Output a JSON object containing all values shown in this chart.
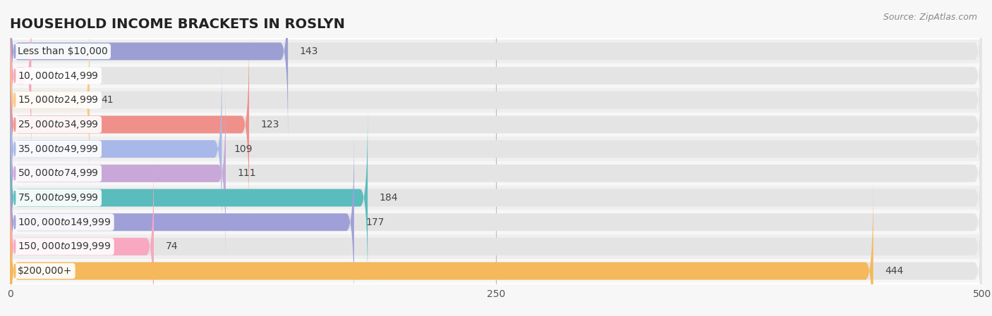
{
  "title": "HOUSEHOLD INCOME BRACKETS IN ROSLYN",
  "source": "Source: ZipAtlas.com",
  "categories": [
    "Less than $10,000",
    "$10,000 to $14,999",
    "$15,000 to $24,999",
    "$25,000 to $34,999",
    "$35,000 to $49,999",
    "$50,000 to $74,999",
    "$75,000 to $99,999",
    "$100,000 to $149,999",
    "$150,000 to $199,999",
    "$200,000+"
  ],
  "values": [
    143,
    11,
    41,
    123,
    109,
    111,
    184,
    177,
    74,
    444
  ],
  "bar_colors": [
    "#9b9fd4",
    "#f4a7b9",
    "#f9c98a",
    "#f0908a",
    "#a8b8e8",
    "#c8a8d8",
    "#5bbcbe",
    "#a0a0d8",
    "#f8a8c0",
    "#f5b85a"
  ],
  "xlim": [
    0,
    500
  ],
  "xticks": [
    0,
    250,
    500
  ],
  "background_color": "#f7f7f7",
  "bar_bg_color": "#e4e4e4",
  "row_bg_even": "#efefef",
  "row_bg_odd": "#f7f7f7",
  "title_fontsize": 14,
  "label_fontsize": 10,
  "value_fontsize": 10,
  "source_fontsize": 9
}
